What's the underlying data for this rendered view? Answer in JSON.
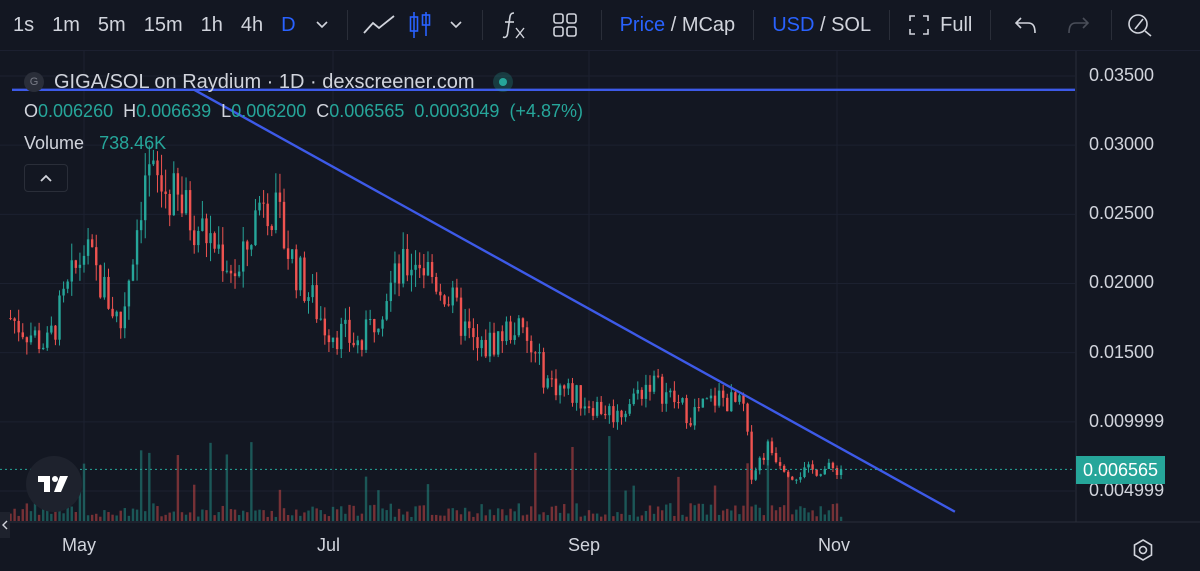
{
  "toolbar": {
    "timeframes": [
      "1s",
      "1m",
      "5m",
      "15m",
      "1h",
      "4h",
      "D"
    ],
    "active_timeframe": "D",
    "price_toggle": {
      "on": "Price",
      "off": "MCap"
    },
    "currency_toggle": {
      "on": "USD",
      "off": "SOL"
    },
    "full_label": "Full",
    "icons": [
      "chevron-down-icon",
      "line-chart-icon",
      "candles-icon",
      "chevron-down-icon",
      "indicators-fx-icon",
      "layout-grid-icon",
      "fullscreen-icon",
      "undo-icon",
      "redo-icon",
      "screenshot-icon"
    ]
  },
  "legend": {
    "symbol_initial": "G",
    "title": "GIGA/SOL on Raydium · 1D · dexscreener.com",
    "ohlc": {
      "o_label": "O",
      "o": "0.006260",
      "h_label": "H",
      "h": "0.006639",
      "l_label": "L",
      "l": "0.006200",
      "c_label": "C",
      "c": "0.006565",
      "change": "0.0003049",
      "change_pct": "(+4.87%)"
    },
    "volume_label": "Volume",
    "volume": "738.46K"
  },
  "price_axis": [
    "0.03500",
    "0.03000",
    "0.02500",
    "0.02000",
    "0.01500",
    "0.009999",
    "0.004999"
  ],
  "current_price": "0.006565",
  "time_axis": [
    "May",
    "Jul",
    "Sep",
    "Nov"
  ],
  "colors": {
    "background": "#131722",
    "up": "#26a69a",
    "down": "#ef5350",
    "accent": "#2962ff",
    "trendline": "#3d5ae8",
    "text": "#d1d4dc"
  },
  "chart_data": {
    "type": "candlestick",
    "symbol": "GIGA/SOL",
    "interval": "1D",
    "ylim": [
      0.0035,
      0.0375
    ],
    "x_ticks": [
      "May",
      "Jul",
      "Sep",
      "Nov"
    ],
    "close_path": [
      {
        "date": "2024-04-13",
        "price": 0.0175
      },
      {
        "date": "2024-04-22",
        "price": 0.0155
      },
      {
        "date": "2024-05-01",
        "price": 0.0225
      },
      {
        "date": "2024-05-10",
        "price": 0.017
      },
      {
        "date": "2024-05-16",
        "price": 0.028
      },
      {
        "date": "2024-05-25",
        "price": 0.0255
      },
      {
        "date": "2024-06-03",
        "price": 0.0225
      },
      {
        "date": "2024-06-08",
        "price": 0.0205
      },
      {
        "date": "2024-06-14",
        "price": 0.027
      },
      {
        "date": "2024-06-22",
        "price": 0.021
      },
      {
        "date": "2024-06-29",
        "price": 0.017
      },
      {
        "date": "2024-07-08",
        "price": 0.0155
      },
      {
        "date": "2024-07-14",
        "price": 0.0195
      },
      {
        "date": "2024-07-21",
        "price": 0.022
      },
      {
        "date": "2024-07-28",
        "price": 0.0195
      },
      {
        "date": "2024-08-05",
        "price": 0.015
      },
      {
        "date": "2024-08-14",
        "price": 0.017
      },
      {
        "date": "2024-08-22",
        "price": 0.013
      },
      {
        "date": "2024-08-31",
        "price": 0.0115
      },
      {
        "date": "2024-09-08",
        "price": 0.0105
      },
      {
        "date": "2024-09-16",
        "price": 0.013
      },
      {
        "date": "2024-09-26",
        "price": 0.0105
      },
      {
        "date": "2024-10-03",
        "price": 0.0118
      },
      {
        "date": "2024-10-09",
        "price": 0.011
      },
      {
        "date": "2024-10-11",
        "price": 0.0063
      },
      {
        "date": "2024-10-15",
        "price": 0.0082
      },
      {
        "date": "2024-10-21",
        "price": 0.0062
      },
      {
        "date": "2024-10-28",
        "price": 0.0066
      },
      {
        "date": "2024-11-02",
        "price": 0.006565
      }
    ],
    "horizontal_line": {
      "price": 0.034,
      "color": "#3d5ae8"
    },
    "trendline": [
      {
        "date": "2024-05-28",
        "price": 0.034
      },
      {
        "date": "2024-11-30",
        "price": 0.0035
      }
    ],
    "last_price": 0.006565
  }
}
